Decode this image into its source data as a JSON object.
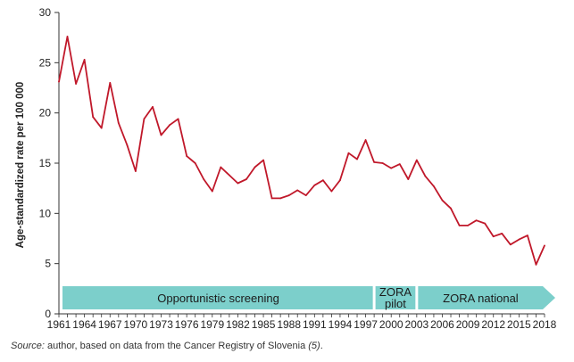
{
  "chart_data": {
    "type": "line",
    "title": "",
    "xlabel": "",
    "ylabel": "Age-standardized rate per 100 000",
    "xlim": [
      1961,
      2018
    ],
    "ylim": [
      0,
      30
    ],
    "yticks": [
      0,
      5,
      10,
      15,
      20,
      25,
      30
    ],
    "xticks": [
      1961,
      1964,
      1967,
      1970,
      1973,
      1976,
      1979,
      1982,
      1985,
      1988,
      1991,
      1994,
      1997,
      2000,
      2003,
      2006,
      2009,
      2012,
      2015,
      2018
    ],
    "series": [
      {
        "name": "Age-standardized rate",
        "color": "#c0182a",
        "x": [
          1961,
          1962,
          1963,
          1964,
          1965,
          1966,
          1967,
          1968,
          1969,
          1970,
          1971,
          1972,
          1973,
          1974,
          1975,
          1976,
          1977,
          1978,
          1979,
          1980,
          1981,
          1982,
          1983,
          1984,
          1985,
          1986,
          1987,
          1988,
          1989,
          1990,
          1991,
          1992,
          1993,
          1994,
          1995,
          1996,
          1997,
          1998,
          1999,
          2000,
          2001,
          2002,
          2003,
          2004,
          2005,
          2006,
          2007,
          2008,
          2009,
          2010,
          2011,
          2012,
          2013,
          2014,
          2015,
          2016,
          2017,
          2018
        ],
        "values": [
          23.1,
          27.6,
          22.9,
          25.3,
          19.6,
          18.5,
          23.0,
          19.0,
          16.8,
          14.2,
          19.4,
          20.6,
          17.8,
          18.8,
          19.4,
          15.7,
          15.0,
          13.4,
          12.2,
          14.6,
          13.8,
          13.0,
          13.4,
          14.6,
          15.3,
          11.5,
          11.5,
          11.8,
          12.3,
          11.8,
          12.8,
          13.3,
          12.2,
          13.3,
          16.0,
          15.4,
          17.3,
          15.1,
          15.0,
          14.5,
          14.9,
          13.4,
          15.3,
          13.7,
          12.7,
          11.3,
          10.5,
          8.8,
          8.8,
          9.3,
          9.0,
          7.7,
          8.0,
          6.9,
          7.4,
          7.8,
          4.9,
          6.8
        ]
      }
    ],
    "phases": [
      {
        "label": "Opportunistic screening",
        "start": 1961,
        "end": 1998
      },
      {
        "label_line1": "ZORA",
        "label_line2": "pilot",
        "start": 1998,
        "end": 2003
      },
      {
        "label": "ZORA national",
        "start": 2003,
        "end": 2018
      }
    ],
    "phase_color": "#7ccfcb",
    "grid": false
  },
  "source": {
    "label": "Source:",
    "text": " author, based on data from the Cancer Registry of Slovenia ",
    "ref": "(5)",
    "end": "."
  }
}
